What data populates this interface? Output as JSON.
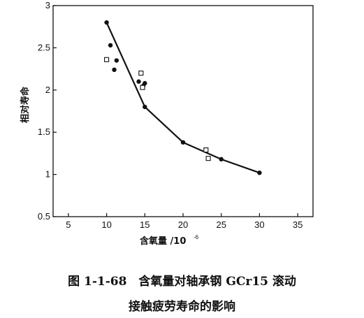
{
  "chart_data": {
    "type": "scatter",
    "xlabel": "含氧量 /10",
    "xlabel_exponent": "-6",
    "ylabel": "相对寿命",
    "xlim": [
      3,
      37
    ],
    "ylim": [
      0.5,
      3
    ],
    "xticks": [
      5,
      10,
      15,
      20,
      25,
      30,
      35
    ],
    "yticks": [
      0.5,
      1,
      1.5,
      2,
      2.5,
      3
    ],
    "ytick_labels": [
      "0.5",
      "1",
      "1.5",
      "2",
      "2.5",
      "3"
    ],
    "grid": false,
    "series": [
      {
        "marker": "line",
        "points": [
          [
            10,
            2.8
          ],
          [
            15,
            1.8
          ],
          [
            20,
            1.38
          ],
          [
            25,
            1.18
          ],
          [
            30,
            1.02
          ]
        ]
      },
      {
        "marker": "filled-circle",
        "points": [
          [
            10,
            2.8
          ],
          [
            10.5,
            2.53
          ],
          [
            11,
            2.24
          ],
          [
            11.3,
            2.35
          ],
          [
            14.2,
            2.1
          ],
          [
            14.8,
            2.05
          ],
          [
            15,
            2.08
          ],
          [
            15,
            1.8
          ],
          [
            20,
            1.38
          ],
          [
            25,
            1.18
          ],
          [
            30,
            1.02
          ]
        ]
      },
      {
        "marker": "open-square",
        "points": [
          [
            10,
            2.36
          ],
          [
            14.5,
            2.2
          ],
          [
            14.7,
            2.03
          ],
          [
            23,
            1.29
          ],
          [
            23.3,
            1.19
          ]
        ]
      }
    ],
    "caption_line1": "图 1-1-68　含氧量对轴承钢 GCr15 滚动",
    "caption_line2": "接触疲劳寿命的影响"
  }
}
